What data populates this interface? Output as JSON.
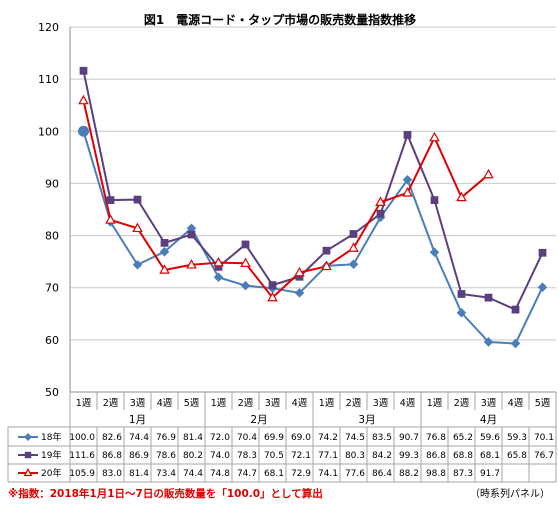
{
  "chart_data": {
    "type": "line",
    "title": "図1　電源コード・タップ市場の販売数量指数推移",
    "ylim": [
      50,
      120
    ],
    "yticks": [
      50,
      60,
      70,
      80,
      90,
      100,
      110,
      120
    ],
    "grid": true,
    "categories": [
      "1週",
      "2週",
      "3週",
      "4週",
      "5週",
      "1週",
      "2週",
      "3週",
      "4週",
      "1週",
      "2週",
      "3週",
      "4週",
      "1週",
      "2週",
      "3週",
      "4週",
      "5週"
    ],
    "months": [
      {
        "label": "1月",
        "start": 0,
        "end": 4
      },
      {
        "label": "2月",
        "start": 5,
        "end": 8
      },
      {
        "label": "3月",
        "start": 9,
        "end": 12
      },
      {
        "label": "4月",
        "start": 13,
        "end": 17
      }
    ],
    "series": [
      {
        "name": "18年",
        "color": "#4a7ebb",
        "marker": "diamond",
        "values": [
          100.0,
          82.6,
          74.4,
          76.9,
          81.4,
          72.0,
          70.4,
          69.9,
          69.0,
          74.2,
          74.5,
          83.5,
          90.7,
          76.8,
          65.2,
          59.6,
          59.3,
          70.1
        ]
      },
      {
        "name": "19年",
        "color": "#5b3f7f",
        "marker": "square",
        "values": [
          111.6,
          86.8,
          86.9,
          78.6,
          80.2,
          74.0,
          78.3,
          70.5,
          72.1,
          77.1,
          80.3,
          84.2,
          99.3,
          86.8,
          68.8,
          68.1,
          65.8,
          76.7
        ]
      },
      {
        "name": "20年",
        "color": "#e00000",
        "marker": "triangle",
        "values": [
          105.9,
          83.0,
          81.4,
          73.4,
          74.4,
          74.8,
          74.7,
          68.1,
          72.9,
          74.1,
          77.6,
          86.4,
          88.2,
          98.8,
          87.3,
          91.7,
          null,
          null
        ]
      }
    ],
    "table_cells": [
      [
        "100.0",
        "82.6",
        "74.4",
        "76.9",
        "81.4",
        "72.0",
        "70.4",
        "69.9",
        "69.0",
        "74.2",
        "74.5",
        "83.5",
        "90.7",
        "76.8",
        "65.2",
        "59.6",
        "59.3",
        "70.1"
      ],
      [
        "111.6",
        "86.8",
        "86.9",
        "78.6",
        "80.2",
        "74.0",
        "78.3",
        "70.5",
        "72.1",
        "77.1",
        "80.3",
        "84.2",
        "99.3",
        "86.8",
        "68.8",
        "68.1",
        "65.8",
        "76.7"
      ],
      [
        "105.9",
        "83.0",
        "81.4",
        "73.4",
        "74.4",
        "74.8",
        "74.7",
        "68.1",
        "72.9",
        "74.1",
        "77.6",
        "86.4",
        "88.2",
        "98.8",
        "87.3",
        "91.7",
        "",
        ""
      ]
    ],
    "note": "※指数：2018年1月1日～7日の販売数量を「100.0」として算出",
    "source": "（時系列パネル）"
  }
}
